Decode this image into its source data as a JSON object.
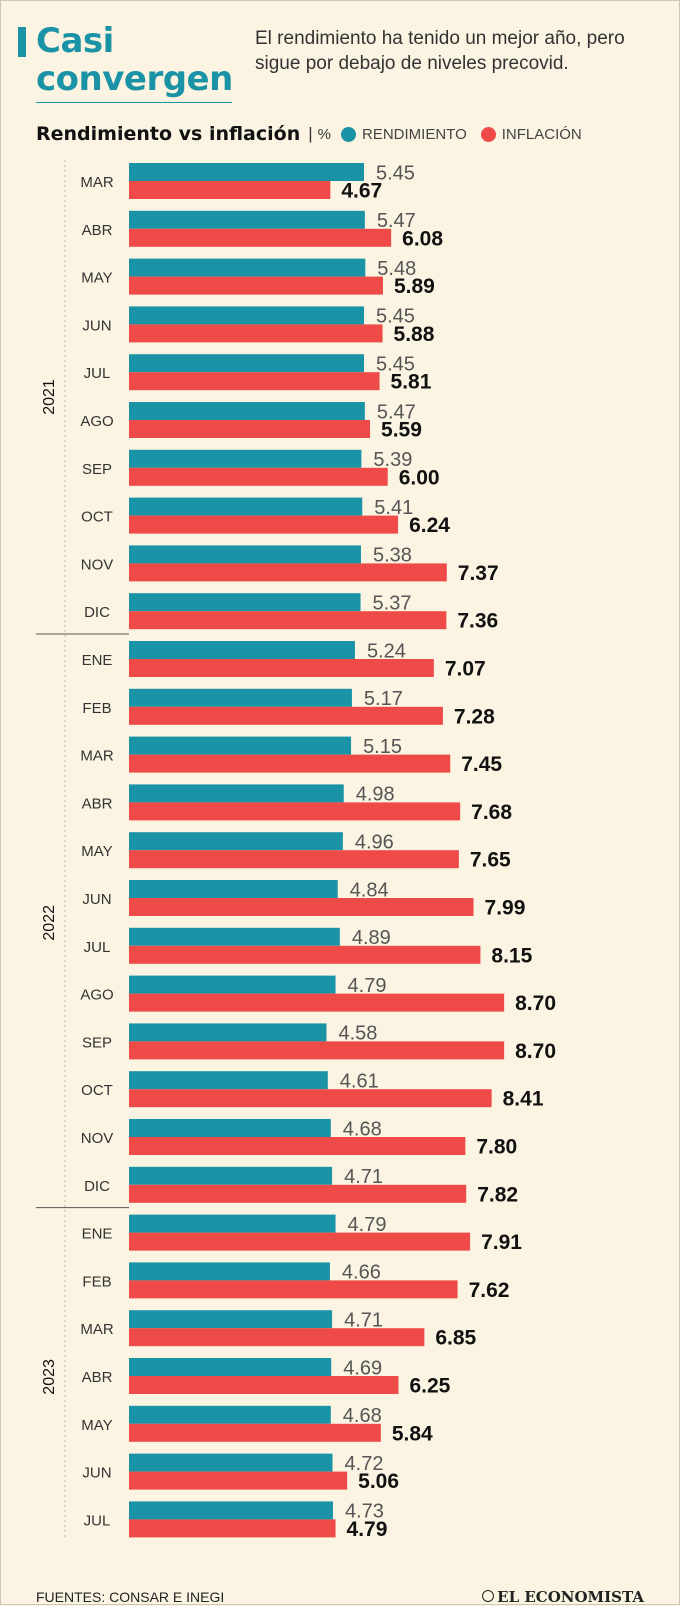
{
  "title": "Casi convergen",
  "subtitle": "El rendimiento ha tenido un mejor año, pero sigue por debajo de niveles precovid.",
  "sources": "FUENTES: CONSAR E INEGI",
  "brand": "EL ECONOMISTA",
  "colors": {
    "rendimiento": "#1b93a6",
    "inflacion": "#ee4b48",
    "accent": "#1b93a6"
  },
  "chart_data": {
    "type": "bar",
    "orientation": "horizontal",
    "title": "Rendimiento vs inflación",
    "unit": "%",
    "legend": [
      "RENDIMIENTO",
      "INFLACIÓN"
    ],
    "xlim": [
      0,
      9.3
    ],
    "categories": [
      "MAR",
      "ABR",
      "MAY",
      "JUN",
      "JUL",
      "AGO",
      "SEP",
      "OCT",
      "NOV",
      "DIC",
      "ENE",
      "FEB",
      "MAR",
      "ABR",
      "MAY",
      "JUN",
      "JUL",
      "AGO",
      "SEP",
      "OCT",
      "NOV",
      "DIC",
      "ENE",
      "FEB",
      "MAR",
      "ABR",
      "MAY",
      "JUN",
      "JUL"
    ],
    "years": [
      {
        "label": "2021",
        "start": 0,
        "count": 10
      },
      {
        "label": "2022",
        "start": 10,
        "count": 12
      },
      {
        "label": "2023",
        "start": 22,
        "count": 7
      }
    ],
    "series": [
      {
        "name": "RENDIMIENTO",
        "values": [
          5.45,
          5.47,
          5.48,
          5.45,
          5.45,
          5.47,
          5.39,
          5.41,
          5.38,
          5.37,
          5.24,
          5.17,
          5.15,
          4.98,
          4.96,
          4.84,
          4.89,
          4.79,
          4.58,
          4.61,
          4.68,
          4.71,
          4.79,
          4.66,
          4.71,
          4.69,
          4.68,
          4.72,
          4.73
        ]
      },
      {
        "name": "INFLACIÓN",
        "values": [
          4.67,
          6.08,
          5.89,
          5.88,
          5.81,
          5.59,
          6.0,
          6.24,
          7.37,
          7.36,
          7.07,
          7.28,
          7.45,
          7.68,
          7.65,
          7.99,
          8.15,
          8.7,
          8.7,
          8.41,
          7.8,
          7.82,
          7.91,
          7.62,
          6.85,
          6.25,
          5.84,
          5.06,
          4.79
        ]
      }
    ]
  }
}
